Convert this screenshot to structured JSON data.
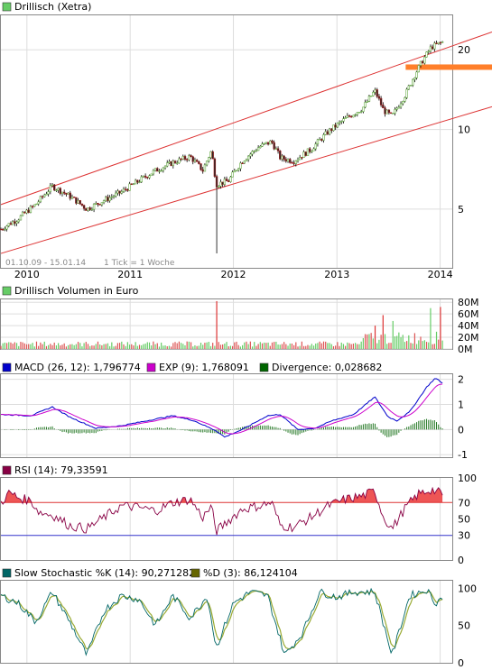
{
  "chart_data": [
    {
      "panel": "price",
      "type": "candlestick",
      "title": "Drillisch (Xetra)",
      "legend_color": "#66cc66",
      "date_range_label": "01.10.09 - 15.01.14",
      "tick_note": "1 Tick = 1 Woche",
      "x_ticks": [
        "2010",
        "2011",
        "2012",
        "2013",
        "2014"
      ],
      "y_ticks": [
        "20",
        "10",
        "5"
      ],
      "y_tick_values": [
        20,
        10,
        5
      ],
      "scale": "log",
      "ylim": [
        3,
        27
      ],
      "price_path": [
        [
          "2009-10-01",
          4.2
        ],
        [
          "2009-12-01",
          4.6
        ],
        [
          "2010-02-01",
          5.2
        ],
        [
          "2010-04-01",
          6.1
        ],
        [
          "2010-06-01",
          5.6
        ],
        [
          "2010-08-01",
          5.0
        ],
        [
          "2010-10-01",
          5.4
        ],
        [
          "2010-12-01",
          5.8
        ],
        [
          "2011-02-01",
          6.4
        ],
        [
          "2011-04-01",
          7.0
        ],
        [
          "2011-06-01",
          7.5
        ],
        [
          "2011-08-01",
          7.9
        ],
        [
          "2011-09-15",
          7.0
        ],
        [
          "2011-10-15",
          8.3
        ],
        [
          "2011-11-01",
          6.2
        ],
        [
          "2011-12-15",
          6.4
        ],
        [
          "2012-02-01",
          7.6
        ],
        [
          "2012-04-01",
          8.6
        ],
        [
          "2012-05-15",
          9.0
        ],
        [
          "2012-06-15",
          7.8
        ],
        [
          "2012-08-01",
          7.6
        ],
        [
          "2012-10-01",
          8.4
        ],
        [
          "2012-12-01",
          9.8
        ],
        [
          "2013-02-01",
          11.0
        ],
        [
          "2013-04-01",
          12.0
        ],
        [
          "2013-05-15",
          14.0
        ],
        [
          "2013-06-15",
          11.8
        ],
        [
          "2013-07-15",
          11.2
        ],
        [
          "2013-09-01",
          13.6
        ],
        [
          "2013-10-15",
          17.0
        ],
        [
          "2013-12-01",
          20.5
        ],
        [
          "2014-01-15",
          21.5
        ]
      ],
      "spike_low": {
        "date": "2011-11-01",
        "value": 3.4
      },
      "channel_upper": [
        [
          "2009-10-01",
          5.2
        ],
        [
          "2014-02-20",
          23.0
        ]
      ],
      "channel_lower": [
        [
          "2009-10-01",
          3.4
        ],
        [
          "2014-02-20",
          12.0
        ]
      ],
      "horizontal_level": 17.2,
      "level_color": "#ff7f2a",
      "line_color": "#dd3333"
    },
    {
      "panel": "volume",
      "type": "bar",
      "title": "Drillisch Volumen in Euro",
      "legend_color": "#66cc66",
      "y_ticks": [
        "80M",
        "60M",
        "40M",
        "20M",
        "0M"
      ],
      "y_tick_values": [
        80,
        60,
        40,
        20,
        0
      ],
      "ylim": [
        0,
        85
      ],
      "peaks": [
        {
          "date": "2011-11-01",
          "value": 82,
          "color": "#dd3333"
        },
        {
          "date": "2013-05-15",
          "value": 40,
          "color": "#dd3333"
        },
        {
          "date": "2013-06-15",
          "value": 58,
          "color": "#dd3333"
        },
        {
          "date": "2013-07-15",
          "value": 48,
          "color": "#66cc66"
        },
        {
          "date": "2013-12-01",
          "value": 70,
          "color": "#66cc66"
        },
        {
          "date": "2014-01-01",
          "value": 72,
          "color": "#dd3333"
        }
      ]
    },
    {
      "panel": "macd",
      "type": "line",
      "legend": [
        {
          "name": "MACD (26, 12): 1,796774",
          "color": "#0000cc"
        },
        {
          "name": "EXP (9): 1,768091",
          "color": "#cc00cc"
        },
        {
          "name": "Divergence: 0,028682",
          "color": "#006600"
        }
      ],
      "y_ticks": [
        "2",
        "1",
        "0",
        "-1"
      ],
      "y_tick_values": [
        2,
        1,
        0,
        -1
      ],
      "ylim": [
        -1.1,
        2.2
      ],
      "macd_path": [
        [
          "2009-10-01",
          0.6
        ],
        [
          "2010-01-15",
          0.55
        ],
        [
          "2010-04-01",
          0.9
        ],
        [
          "2010-06-01",
          0.5
        ],
        [
          "2010-09-01",
          0.05
        ],
        [
          "2010-12-01",
          0.15
        ],
        [
          "2011-03-01",
          0.35
        ],
        [
          "2011-06-01",
          0.55
        ],
        [
          "2011-08-15",
          0.35
        ],
        [
          "2011-11-01",
          -0.05
        ],
        [
          "2011-12-01",
          -0.3
        ],
        [
          "2012-02-01",
          0.0
        ],
        [
          "2012-05-01",
          0.55
        ],
        [
          "2012-06-15",
          0.6
        ],
        [
          "2012-08-15",
          0.0
        ],
        [
          "2012-10-15",
          0.05
        ],
        [
          "2012-12-15",
          0.35
        ],
        [
          "2013-03-01",
          0.6
        ],
        [
          "2013-05-15",
          1.3
        ],
        [
          "2013-07-01",
          0.5
        ],
        [
          "2013-08-01",
          0.35
        ],
        [
          "2013-09-15",
          0.7
        ],
        [
          "2013-11-15",
          1.7
        ],
        [
          "2013-12-15",
          2.05
        ],
        [
          "2014-01-15",
          1.8
        ]
      ]
    },
    {
      "panel": "rsi",
      "type": "line",
      "legend": [
        {
          "name": "RSI (14): 79,33591",
          "color": "#880044"
        }
      ],
      "y_ticks": [
        "100",
        "70",
        "50",
        "30",
        "0"
      ],
      "y_tick_values": [
        100,
        70,
        50,
        30,
        0
      ],
      "ylim": [
        0,
        100
      ],
      "overbought": 70,
      "oversold": 30,
      "rsi_path": [
        [
          "2009-10-01",
          70
        ],
        [
          "2009-11-01",
          82
        ],
        [
          "2009-12-01",
          76
        ],
        [
          "2010-01-15",
          72
        ],
        [
          "2010-02-15",
          58
        ],
        [
          "2010-04-01",
          55
        ],
        [
          "2010-06-01",
          42
        ],
        [
          "2010-08-01",
          38
        ],
        [
          "2010-10-01",
          52
        ],
        [
          "2010-12-01",
          66
        ],
        [
          "2011-02-01",
          64
        ],
        [
          "2011-04-01",
          60
        ],
        [
          "2011-06-01",
          70
        ],
        [
          "2011-08-01",
          74
        ],
        [
          "2011-09-15",
          52
        ],
        [
          "2011-10-15",
          65
        ],
        [
          "2011-11-01",
          35
        ],
        [
          "2011-12-15",
          48
        ],
        [
          "2012-02-01",
          62
        ],
        [
          "2012-04-01",
          66
        ],
        [
          "2012-05-15",
          70
        ],
        [
          "2012-06-15",
          42
        ],
        [
          "2012-08-01",
          40
        ],
        [
          "2012-10-01",
          52
        ],
        [
          "2012-12-01",
          66
        ],
        [
          "2013-02-01",
          74
        ],
        [
          "2013-04-01",
          78
        ],
        [
          "2013-05-15",
          84
        ],
        [
          "2013-06-15",
          52
        ],
        [
          "2013-07-15",
          38
        ],
        [
          "2013-09-01",
          64
        ],
        [
          "2013-10-15",
          80
        ],
        [
          "2013-12-01",
          86
        ],
        [
          "2014-01-15",
          79
        ]
      ]
    },
    {
      "panel": "stochastic",
      "type": "line",
      "legend": [
        {
          "name": "Slow Stochastic %K (14): 90,271282",
          "color": "#006666"
        },
        {
          "name": "%D (3): 86,124104",
          "color": "#666600"
        }
      ],
      "y_ticks": [
        "100",
        "50",
        "0"
      ],
      "y_tick_values": [
        100,
        50,
        0
      ],
      "ylim": [
        0,
        110
      ],
      "k_path": [
        [
          "2009-10-01",
          90
        ],
        [
          "2009-12-01",
          80
        ],
        [
          "2010-02-01",
          55
        ],
        [
          "2010-04-01",
          95
        ],
        [
          "2010-06-01",
          55
        ],
        [
          "2010-08-01",
          10
        ],
        [
          "2010-10-01",
          70
        ],
        [
          "2010-12-01",
          90
        ],
        [
          "2011-02-01",
          85
        ],
        [
          "2011-04-01",
          50
        ],
        [
          "2011-06-01",
          90
        ],
        [
          "2011-08-01",
          60
        ],
        [
          "2011-10-01",
          90
        ],
        [
          "2011-11-01",
          20
        ],
        [
          "2012-01-01",
          80
        ],
        [
          "2012-03-01",
          95
        ],
        [
          "2012-05-01",
          90
        ],
        [
          "2012-07-01",
          10
        ],
        [
          "2012-09-01",
          40
        ],
        [
          "2012-11-01",
          95
        ],
        [
          "2013-01-01",
          88
        ],
        [
          "2013-03-01",
          95
        ],
        [
          "2013-05-15",
          95
        ],
        [
          "2013-07-15",
          10
        ],
        [
          "2013-09-15",
          90
        ],
        [
          "2013-11-15",
          98
        ],
        [
          "2013-12-15",
          80
        ],
        [
          "2014-01-15",
          90
        ]
      ]
    }
  ]
}
